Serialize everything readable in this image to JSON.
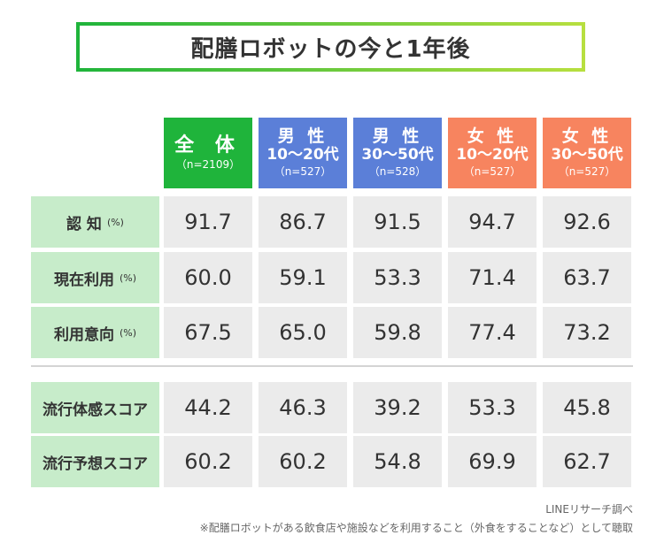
{
  "title": "配膳ロボットの今と1年後",
  "chart_data": {
    "type": "table",
    "title": "配膳ロボットの今と1年後",
    "columns": [
      {
        "line1": "全 体",
        "line2": "",
        "n": "（n=2109）",
        "color": "#1fb43b"
      },
      {
        "line1": "男 性",
        "line2": "10〜20代",
        "n": "（n=527）",
        "color": "#5b7fd8"
      },
      {
        "line1": "男 性",
        "line2": "30〜50代",
        "n": "（n=528）",
        "color": "#5b7fd8"
      },
      {
        "line1": "女 性",
        "line2": "10〜20代",
        "n": "（n=527）",
        "color": "#f7845f"
      },
      {
        "line1": "女 性",
        "line2": "30〜50代",
        "n": "（n=527）",
        "color": "#f7845f"
      }
    ],
    "rows": [
      {
        "label": "認 知",
        "unit": "(%)",
        "values": [
          "91.7",
          "86.7",
          "91.5",
          "94.7",
          "92.6"
        ]
      },
      {
        "label": "現在利用",
        "unit": "(%)",
        "values": [
          "60.0",
          "59.1",
          "53.3",
          "71.4",
          "63.7"
        ]
      },
      {
        "label": "利用意向",
        "unit": "(%)",
        "values": [
          "67.5",
          "65.0",
          "59.8",
          "77.4",
          "73.2"
        ]
      },
      {
        "label": "流行体感スコア",
        "unit": "",
        "values": [
          "44.2",
          "46.3",
          "39.2",
          "53.3",
          "45.8"
        ]
      },
      {
        "label": "流行予想スコア",
        "unit": "",
        "values": [
          "60.2",
          "60.2",
          "54.8",
          "69.9",
          "62.7"
        ]
      }
    ]
  },
  "footer": {
    "source": "LINEリサーチ調べ",
    "note": "※配膳ロボットがある飲食店や施設などを利用すること（外食をすることなど）として聴取"
  }
}
